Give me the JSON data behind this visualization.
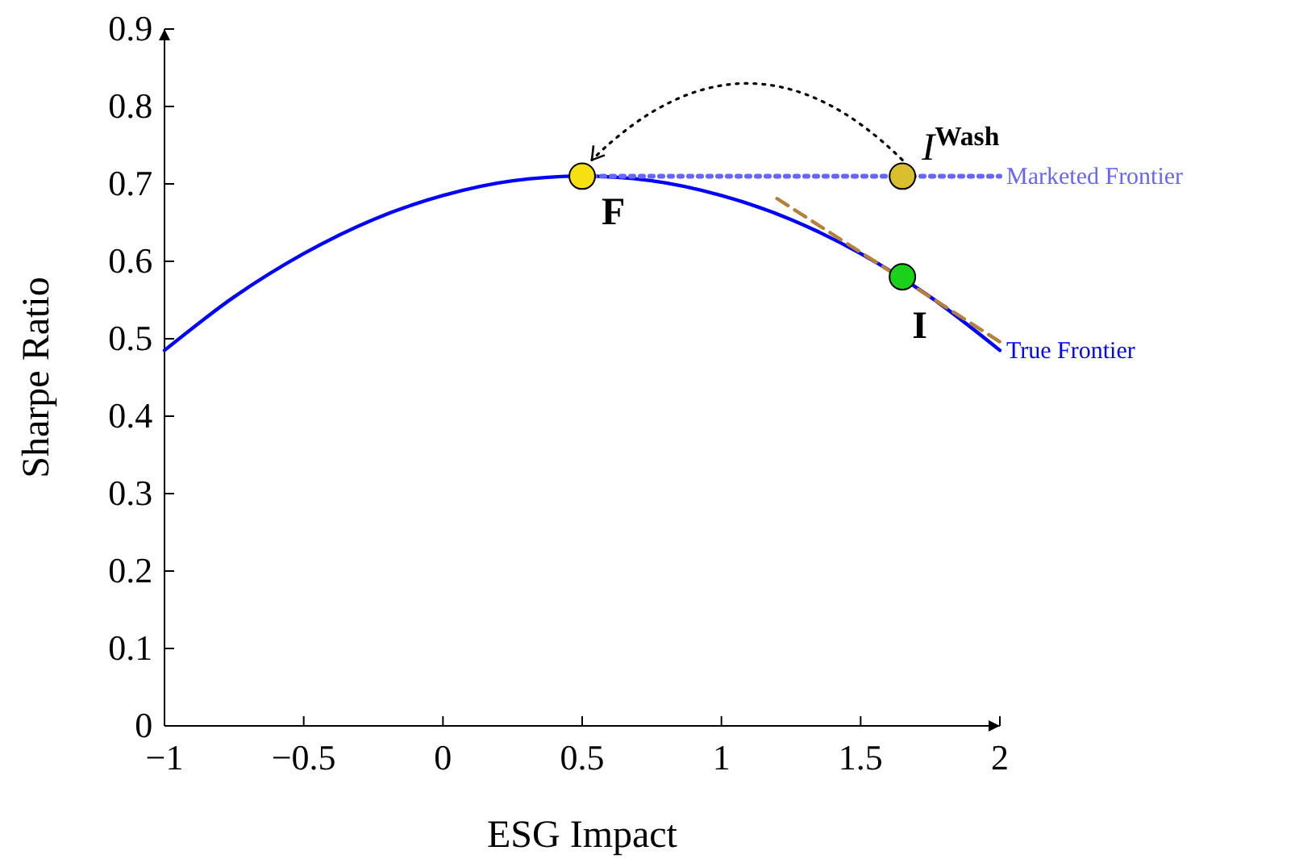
{
  "chart_data": {
    "type": "line",
    "xlabel": "ESG Impact",
    "ylabel": "Sharpe Ratio",
    "xlim": [
      -1,
      2
    ],
    "ylim": [
      0,
      0.9
    ],
    "xticks": [
      {
        "value": -1,
        "label": "−1"
      },
      {
        "value": -0.5,
        "label": "−0.5"
      },
      0,
      0.5,
      1,
      1.5,
      2
    ],
    "yticks": [
      0,
      0.1,
      0.2,
      0.3,
      0.4,
      0.5,
      0.6,
      0.7,
      0.8,
      0.9
    ],
    "series": [
      {
        "name": "True Frontier",
        "color": "#0000ff",
        "line_style": "solid",
        "x": [
          -1,
          -0.75,
          -0.5,
          -0.25,
          0,
          0.25,
          0.5,
          0.75,
          1,
          1.25,
          1.5,
          1.75,
          2
        ],
        "values": [
          0.485,
          0.554,
          0.61,
          0.654,
          0.685,
          0.704,
          0.71,
          0.704,
          0.685,
          0.654,
          0.61,
          0.554,
          0.485
        ]
      },
      {
        "name": "Marketed Frontier",
        "color": "#6666ff",
        "line_style": "dotted",
        "x": [
          0.5,
          2
        ],
        "values": [
          0.71,
          0.71
        ]
      },
      {
        "color": "#b5803a",
        "line_style": "dashed",
        "x": [
          1.2,
          2
        ],
        "values": [
          0.681,
          0.496
        ]
      },
      {
        "type": "scatter",
        "marker": "circle",
        "name": "F",
        "x": [
          0.5
        ],
        "values": [
          0.71
        ],
        "color": "#f5e10f"
      },
      {
        "type": "scatter",
        "marker": "circle",
        "name": "I$^{Wash}$",
        "x": [
          1.65
        ],
        "values": [
          0.71
        ],
        "color": "#d9bf2e"
      },
      {
        "type": "scatter",
        "marker": "circle",
        "name": "I",
        "x": [
          1.65
        ],
        "values": [
          0.58
        ],
        "color": "#19d219"
      }
    ]
  }
}
